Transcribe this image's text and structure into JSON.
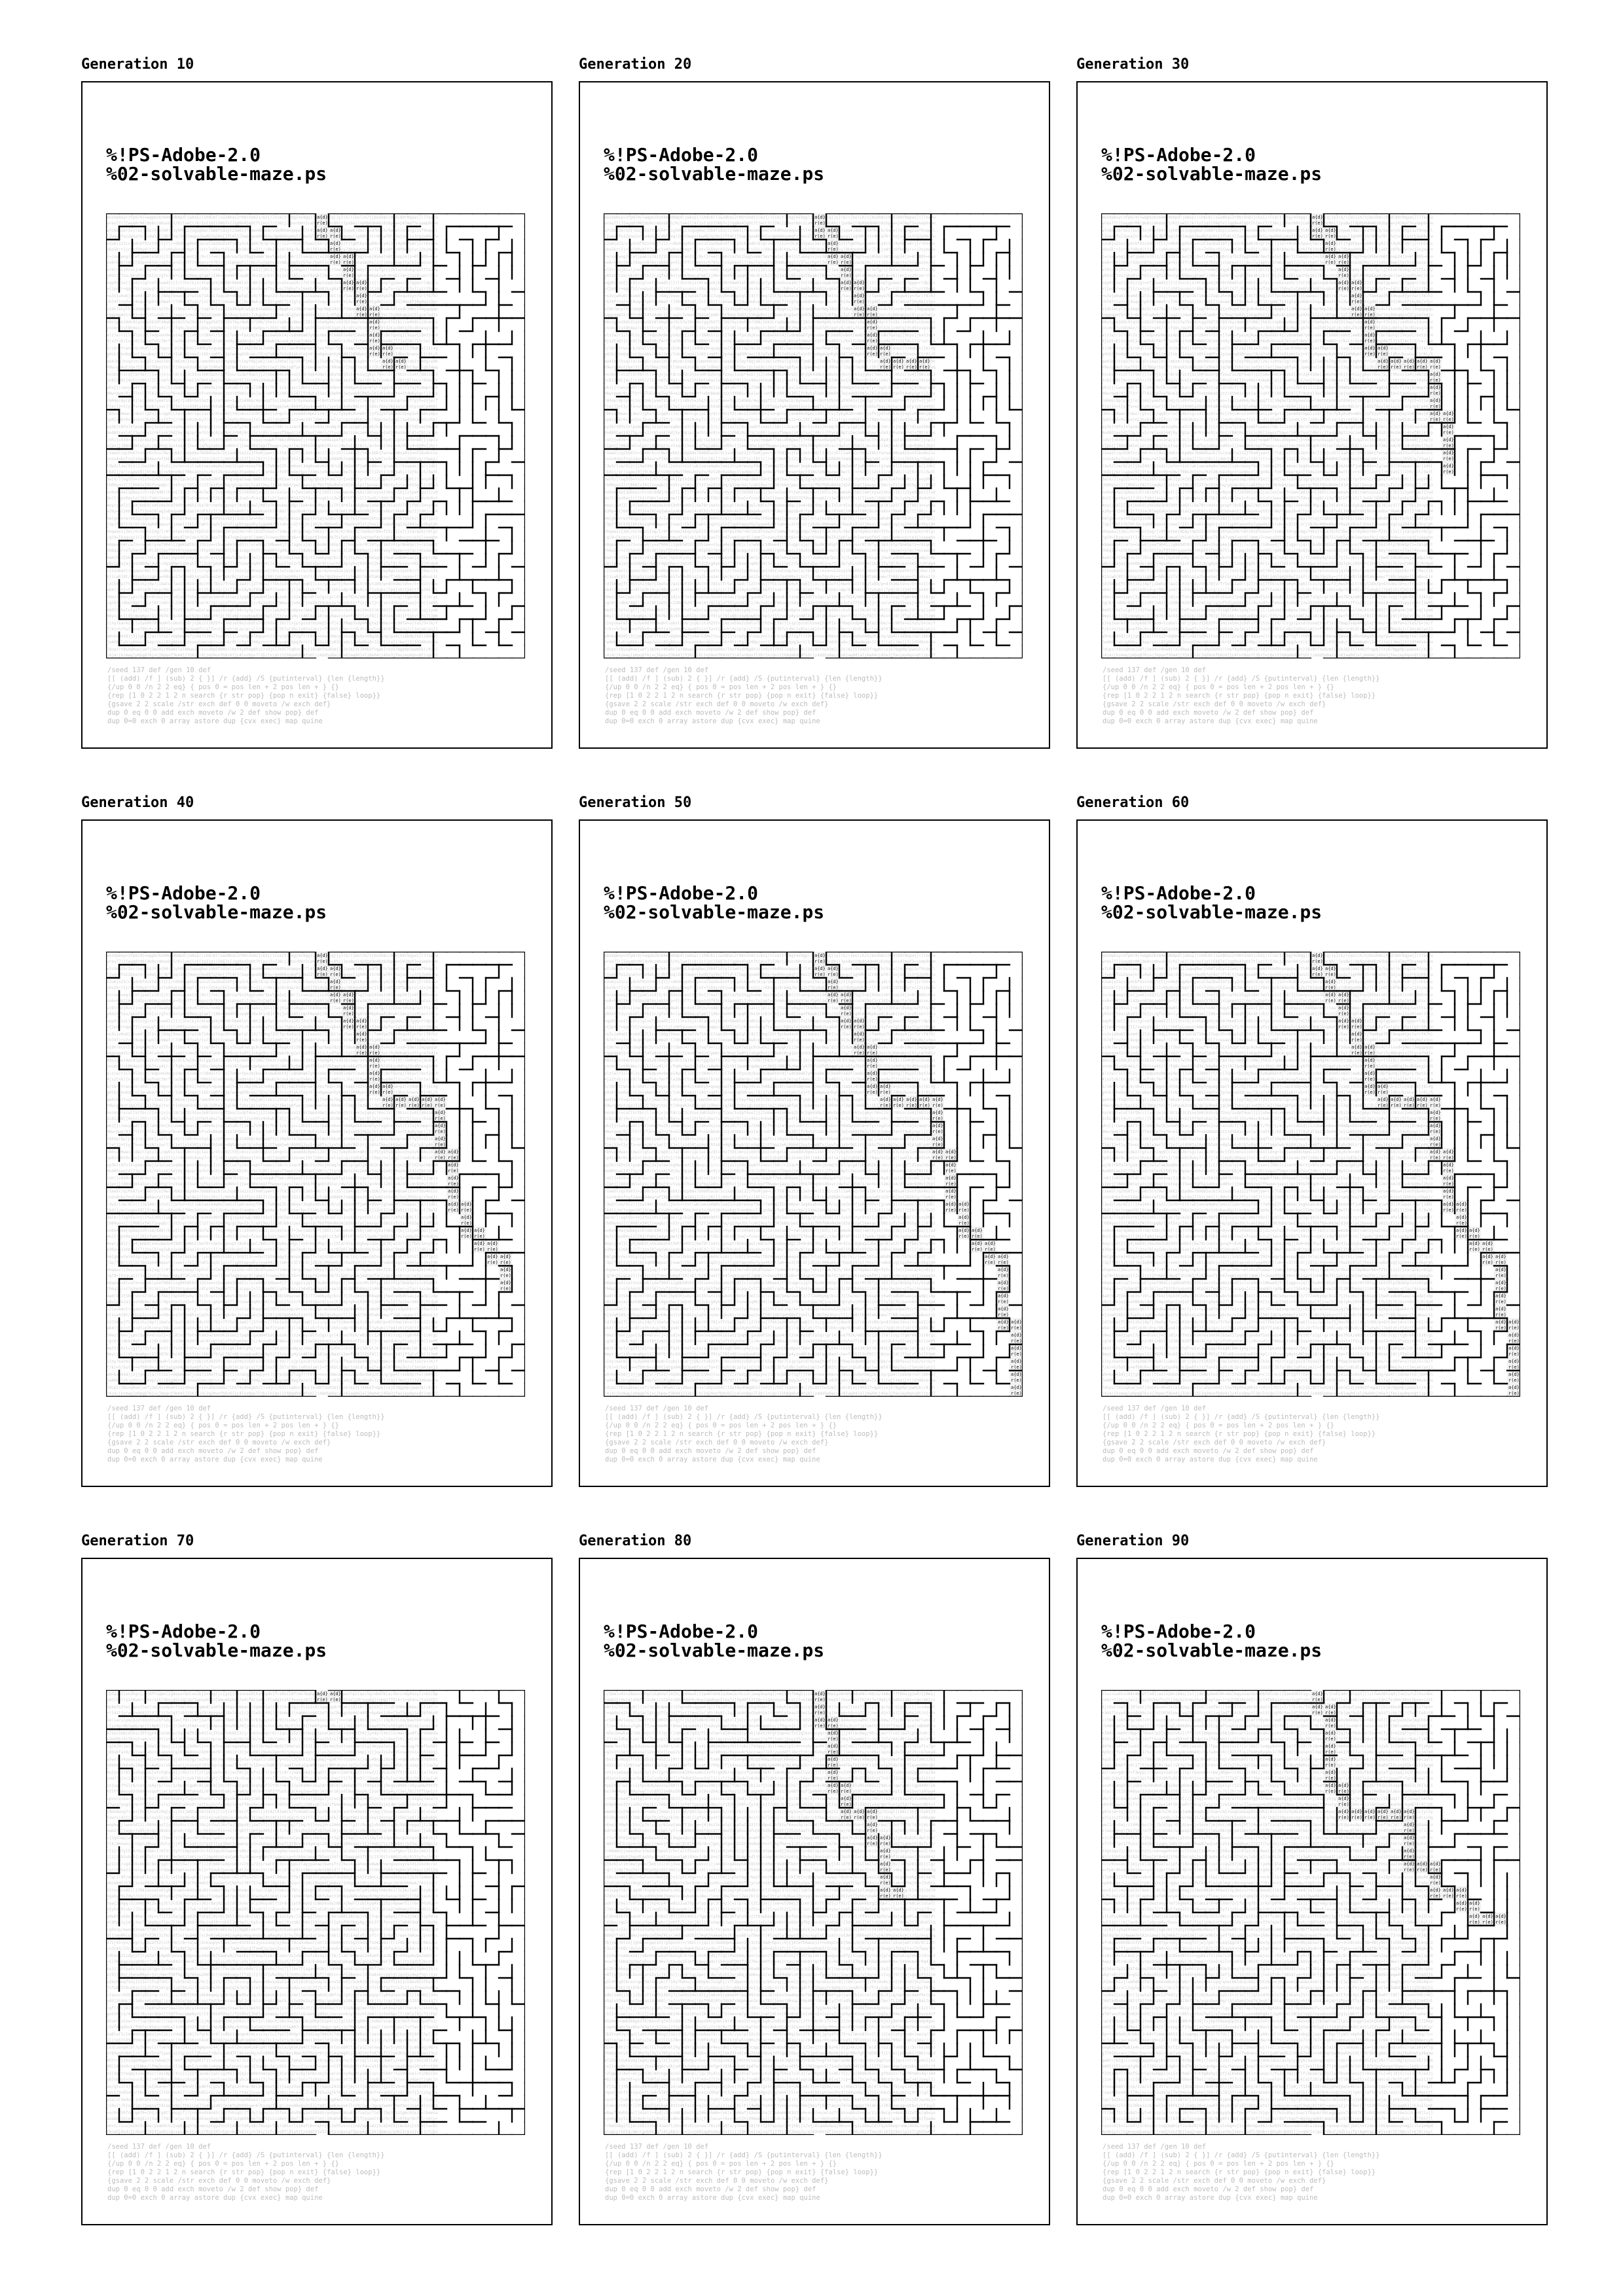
{
  "document": {
    "header_line_1": "%!PS-Adobe-2.0",
    "header_line_2": "%02-solvable-maze.ps"
  },
  "footer_lines": [
    "/seed 137 def /gen 10 def",
    "[[ (add) /f ] (sub) 2 { }] /r {add} /S {putinterval} {len {length}}",
    "{/up 0 0 /n 2 2 eq} { pos 0 = pos len + 2 pos len + } {}",
    "{rep [1 0 2 2 1 2 n search {r str pop} {pop n exit} {false} loop}}",
    "{gsave 2 2 scale /str exch def 0 0 moveto /w exch def}",
    "dup 0 eq 0 0 add exch moveto /w 2 def show pop} def",
    "dup 0=0 exch 0 array astore dup {cvx exec} map quine"
  ],
  "panels": [
    {
      "label": "Generation 10",
      "path_len": 18
    },
    {
      "label": "Generation 20",
      "path_len": 20
    },
    {
      "label": "Generation 30",
      "path_len": 30
    },
    {
      "label": "Generation 40",
      "path_len": 40
    },
    {
      "label": "Generation 50",
      "path_len": 52
    },
    {
      "label": "Generation 60",
      "path_len": 64
    },
    {
      "label": "Generation 70",
      "path_len": 2
    },
    {
      "label": "Generation 80",
      "path_len": 22
    },
    {
      "label": "Generation 90",
      "path_len": 32
    }
  ]
}
